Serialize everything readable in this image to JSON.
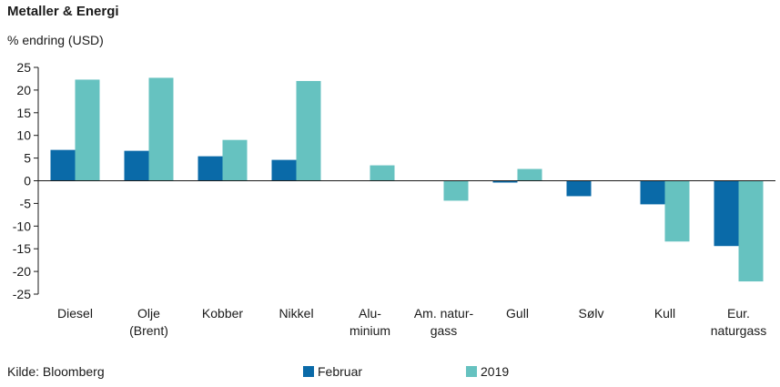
{
  "title": "Metaller & Energi",
  "subtitle": "% endring (USD)",
  "source": "Kilde: Bloomberg",
  "colors": {
    "Februar": "#0a6aa8",
    "2019": "#66c2c0"
  },
  "chart_data": {
    "type": "bar",
    "title": "Metaller & Energi",
    "ylabel": "% endring (USD)",
    "ylim": [
      -25,
      25
    ],
    "yticks": [
      25,
      20,
      15,
      10,
      5,
      0,
      -5,
      -10,
      -15,
      -20,
      -25
    ],
    "grid": false,
    "legend_position": "bottom",
    "categories": [
      [
        "Diesel"
      ],
      [
        "Olje",
        "(Brent)"
      ],
      [
        "Kobber"
      ],
      [
        "Nikkel"
      ],
      [
        "Alu-",
        "minium"
      ],
      [
        "Am. natur-",
        "gass"
      ],
      [
        "Gull"
      ],
      [
        "Sølv"
      ],
      [
        "Kull"
      ],
      [
        "Eur.",
        "naturgass"
      ]
    ],
    "series": [
      {
        "name": "Februar",
        "values": [
          6.8,
          6.6,
          5.4,
          4.6,
          0,
          0,
          -0.4,
          -3.4,
          -5.2,
          -14.4
        ]
      },
      {
        "name": "2019",
        "values": [
          22.3,
          22.7,
          9.0,
          22.0,
          3.4,
          -4.4,
          2.6,
          0,
          -13.4,
          -22.2
        ]
      }
    ]
  }
}
